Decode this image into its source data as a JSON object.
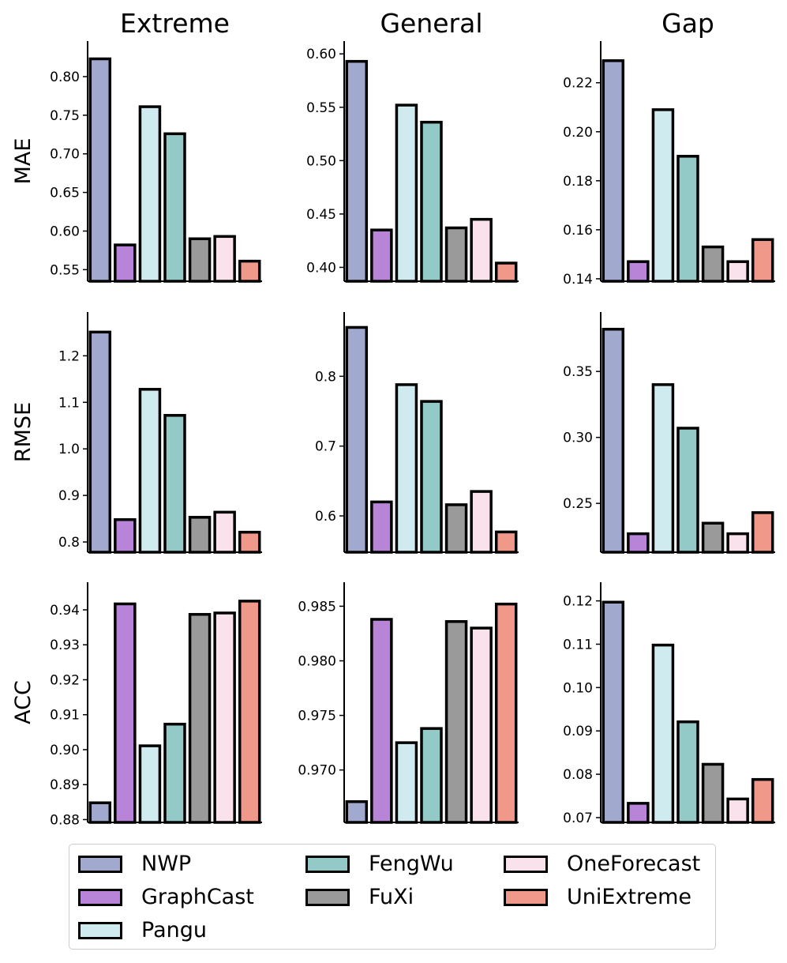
{
  "chart_data": {
    "type": "bar",
    "layout": "3x3 grid of bar charts",
    "columns": [
      "Extreme",
      "General",
      "Gap"
    ],
    "rows": [
      "MAE",
      "RMSE",
      "ACC"
    ],
    "categories": [
      "NWP",
      "GraphCast",
      "Pangu",
      "FengWu",
      "FuXi",
      "OneForecast",
      "UniExtreme"
    ],
    "colors": [
      "#a1a9cf",
      "#b884d8",
      "#d0ebf0",
      "#93c9c6",
      "#9a9a9a",
      "#f9e2ec",
      "#f0998a"
    ],
    "legend": {
      "placement": "bottom",
      "columns": 3
    },
    "grid": false,
    "panels": [
      {
        "row": "MAE",
        "column": "Extreme",
        "values": [
          0.823,
          0.582,
          0.761,
          0.726,
          0.59,
          0.593,
          0.561
        ],
        "ylim": [
          0.535,
          0.846
        ],
        "yticks": [
          "0.55",
          "0.60",
          "0.65",
          "0.70",
          "0.75",
          "0.80"
        ]
      },
      {
        "row": "MAE",
        "column": "General",
        "values": [
          0.593,
          0.435,
          0.552,
          0.536,
          0.437,
          0.445,
          0.404
        ],
        "ylim": [
          0.387,
          0.612
        ],
        "yticks": [
          "0.40",
          "0.45",
          "0.50",
          "0.55",
          "0.60"
        ]
      },
      {
        "row": "MAE",
        "column": "Gap",
        "values": [
          0.229,
          0.147,
          0.209,
          0.19,
          0.153,
          0.147,
          0.156
        ],
        "ylim": [
          0.139,
          0.237
        ],
        "yticks": [
          "0.14",
          "0.16",
          "0.18",
          "0.20",
          "0.22"
        ]
      },
      {
        "row": "RMSE",
        "column": "Extreme",
        "values": [
          1.251,
          0.848,
          1.128,
          1.072,
          0.853,
          0.864,
          0.821
        ],
        "ylim": [
          0.778,
          1.294
        ],
        "yticks": [
          "0.8",
          "0.9",
          "1.0",
          "1.1",
          "1.2"
        ]
      },
      {
        "row": "RMSE",
        "column": "General",
        "values": [
          0.87,
          0.62,
          0.788,
          0.764,
          0.616,
          0.635,
          0.577
        ],
        "ylim": [
          0.548,
          0.892
        ],
        "yticks": [
          "0.6",
          "0.7",
          "0.8"
        ]
      },
      {
        "row": "RMSE",
        "column": "Gap",
        "values": [
          0.382,
          0.227,
          0.34,
          0.307,
          0.235,
          0.227,
          0.243
        ],
        "ylim": [
          0.213,
          0.395
        ],
        "yticks": [
          "0.25",
          "0.30",
          "0.35"
        ]
      },
      {
        "row": "ACC",
        "column": "Extreme",
        "values": [
          0.8848,
          0.9417,
          0.9011,
          0.9073,
          0.9387,
          0.9391,
          0.9425
        ],
        "ylim": [
          0.8792,
          0.9479
        ],
        "yticks": [
          "0.88",
          "0.89",
          "0.90",
          "0.91",
          "0.92",
          "0.93",
          "0.94"
        ]
      },
      {
        "row": "ACC",
        "column": "General",
        "values": [
          0.9671,
          0.9838,
          0.9725,
          0.9738,
          0.9836,
          0.983,
          0.9852
        ],
        "ylim": [
          0.9652,
          0.9872
        ],
        "yticks": [
          "0.970",
          "0.975",
          "0.980",
          "0.985"
        ]
      },
      {
        "row": "ACC",
        "column": "Gap",
        "values": [
          0.1197,
          0.0733,
          0.1098,
          0.0921,
          0.0823,
          0.0743,
          0.0788
        ],
        "ylim": [
          0.0689,
          0.1243
        ],
        "yticks": [
          "0.07",
          "0.08",
          "0.09",
          "0.10",
          "0.11",
          "0.12"
        ]
      }
    ]
  }
}
